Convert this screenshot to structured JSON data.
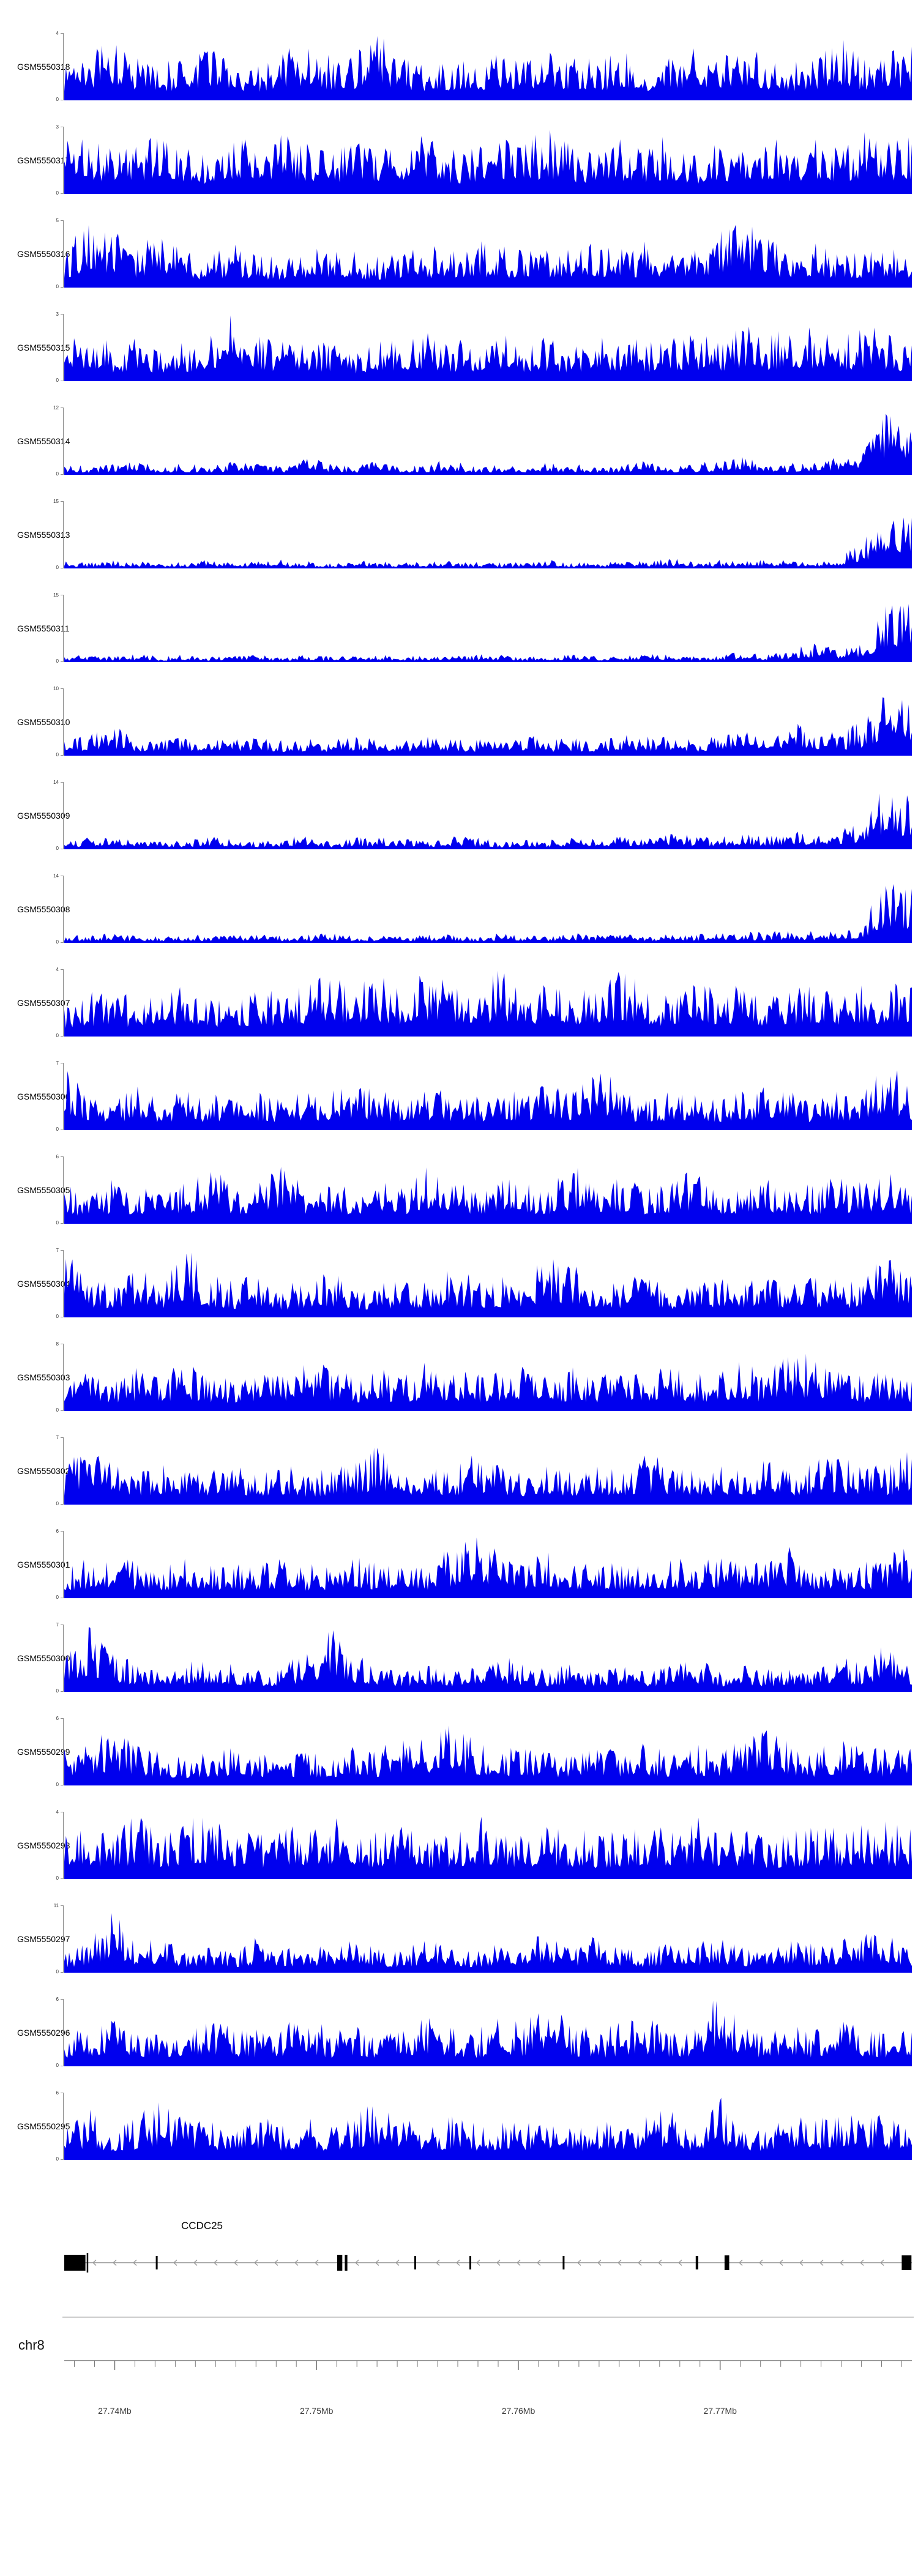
{
  "figure": {
    "signal_color": "#0000EE",
    "gene_color": "#000000",
    "axis_line_color": "#7a7a7a",
    "arrow_color": "#9a9a9a",
    "separator_color": "#cccccc"
  },
  "chart_data": {
    "type": "area",
    "subtype": "genome-browser-coverage-tracks",
    "title": "",
    "x_range_mb": [
      27.7375,
      27.7795
    ],
    "ylabel": "",
    "tracks": [
      {
        "id": "GSM5550318",
        "ymin": 0,
        "ymax": 4,
        "profile": [
          0.55,
          0.7,
          0.95,
          0.6,
          0.5,
          0.65,
          0.8,
          0.55,
          0.5,
          0.7,
          0.85,
          0.6,
          0.7,
          0.9,
          0.65,
          0.5,
          0.6,
          0.55,
          0.7,
          0.6,
          0.75,
          0.65,
          0.55,
          0.7,
          0.5,
          0.6,
          0.85,
          0.7,
          0.75,
          0.6,
          0.55,
          0.65,
          0.9,
          0.6,
          0.65,
          0.8
        ]
      },
      {
        "id": "GSM5550317",
        "ymin": 0,
        "ymax": 3,
        "profile": [
          0.7,
          0.9,
          0.6,
          0.75,
          0.95,
          0.7,
          0.6,
          0.85,
          0.7,
          0.95,
          0.75,
          0.6,
          0.85,
          0.7,
          0.75,
          0.95,
          0.6,
          0.7,
          0.85,
          0.75,
          0.9,
          0.7,
          0.6,
          0.75,
          0.7,
          0.85,
          0.6,
          0.75,
          0.7,
          0.9,
          0.75,
          0.85,
          0.7,
          0.9,
          0.8,
          0.85
        ]
      },
      {
        "id": "GSM5550316",
        "ymin": 0,
        "ymax": 5,
        "profile": [
          0.5,
          1.0,
          0.85,
          0.6,
          0.75,
          0.55,
          0.45,
          0.6,
          0.5,
          0.45,
          0.55,
          0.6,
          0.5,
          0.45,
          0.6,
          0.55,
          0.6,
          0.65,
          0.55,
          0.6,
          0.5,
          0.65,
          0.6,
          0.55,
          0.65,
          0.55,
          0.6,
          0.75,
          1.0,
          0.7,
          0.55,
          0.6,
          0.5,
          0.6,
          0.55,
          0.6
        ]
      },
      {
        "id": "GSM5550315",
        "ymin": 0,
        "ymax": 3,
        "profile": [
          0.55,
          0.75,
          0.5,
          0.6,
          0.45,
          0.55,
          0.65,
          1.0,
          0.7,
          0.55,
          0.6,
          0.5,
          0.45,
          0.6,
          0.55,
          0.7,
          0.55,
          0.6,
          0.7,
          0.55,
          0.6,
          0.5,
          0.7,
          0.6,
          0.55,
          0.6,
          0.7,
          0.55,
          0.8,
          0.6,
          0.85,
          0.7,
          0.6,
          0.8,
          0.65,
          0.55
        ]
      },
      {
        "id": "GSM5550314",
        "ymin": 0,
        "ymax": 12,
        "profile": [
          0.18,
          0.12,
          0.16,
          0.22,
          0.12,
          0.16,
          0.12,
          0.22,
          0.16,
          0.12,
          0.26,
          0.16,
          0.12,
          0.2,
          0.12,
          0.16,
          0.22,
          0.12,
          0.16,
          0.12,
          0.2,
          0.16,
          0.12,
          0.16,
          0.2,
          0.12,
          0.16,
          0.2,
          0.26,
          0.2,
          0.16,
          0.2,
          0.26,
          0.35,
          1.0,
          0.75
        ]
      },
      {
        "id": "GSM5550313",
        "ymin": 0,
        "ymax": 15,
        "profile": [
          0.1,
          0.08,
          0.12,
          0.1,
          0.08,
          0.1,
          0.12,
          0.08,
          0.1,
          0.12,
          0.1,
          0.08,
          0.12,
          0.1,
          0.08,
          0.1,
          0.12,
          0.1,
          0.08,
          0.1,
          0.12,
          0.08,
          0.1,
          0.12,
          0.1,
          0.14,
          0.1,
          0.12,
          0.1,
          0.14,
          0.12,
          0.1,
          0.18,
          0.4,
          1.0,
          0.85
        ]
      },
      {
        "id": "GSM5550311",
        "ymin": 0,
        "ymax": 15,
        "profile": [
          0.08,
          0.1,
          0.08,
          0.11,
          0.08,
          0.1,
          0.08,
          0.1,
          0.11,
          0.08,
          0.1,
          0.08,
          0.11,
          0.1,
          0.08,
          0.1,
          0.08,
          0.11,
          0.1,
          0.08,
          0.1,
          0.11,
          0.08,
          0.1,
          0.11,
          0.1,
          0.08,
          0.11,
          0.14,
          0.1,
          0.18,
          0.26,
          0.18,
          0.3,
          0.85,
          1.0
        ]
      },
      {
        "id": "GSM5550310",
        "ymin": 0,
        "ymax": 10,
        "profile": [
          0.22,
          0.32,
          0.42,
          0.26,
          0.22,
          0.3,
          0.22,
          0.26,
          0.3,
          0.22,
          0.26,
          0.22,
          0.3,
          0.26,
          0.22,
          0.3,
          0.26,
          0.22,
          0.26,
          0.3,
          0.22,
          0.26,
          0.22,
          0.3,
          0.26,
          0.3,
          0.22,
          0.3,
          0.4,
          0.3,
          0.5,
          0.4,
          0.3,
          0.5,
          1.0,
          0.85
        ]
      },
      {
        "id": "GSM5550309",
        "ymin": 0,
        "ymax": 14,
        "profile": [
          0.12,
          0.16,
          0.2,
          0.12,
          0.16,
          0.12,
          0.2,
          0.16,
          0.12,
          0.16,
          0.2,
          0.12,
          0.16,
          0.2,
          0.16,
          0.12,
          0.2,
          0.16,
          0.12,
          0.16,
          0.12,
          0.2,
          0.16,
          0.2,
          0.16,
          0.24,
          0.2,
          0.16,
          0.24,
          0.2,
          0.28,
          0.24,
          0.3,
          0.4,
          1.0,
          0.7
        ]
      },
      {
        "id": "GSM5550308",
        "ymin": 0,
        "ymax": 14,
        "profile": [
          0.12,
          0.1,
          0.14,
          0.12,
          0.1,
          0.14,
          0.1,
          0.12,
          0.14,
          0.1,
          0.12,
          0.14,
          0.1,
          0.12,
          0.1,
          0.14,
          0.12,
          0.1,
          0.14,
          0.12,
          0.1,
          0.14,
          0.12,
          0.14,
          0.1,
          0.14,
          0.12,
          0.14,
          0.18,
          0.14,
          0.2,
          0.16,
          0.2,
          0.3,
          1.0,
          0.8
        ]
      },
      {
        "id": "GSM5550307",
        "ymin": 0,
        "ymax": 4,
        "profile": [
          0.5,
          0.6,
          0.7,
          0.5,
          0.6,
          0.8,
          0.6,
          0.5,
          0.7,
          0.6,
          0.8,
          0.95,
          0.7,
          0.9,
          0.6,
          0.95,
          0.8,
          0.6,
          0.95,
          0.7,
          0.85,
          0.6,
          0.8,
          0.95,
          0.7,
          0.6,
          0.85,
          0.7,
          0.8,
          0.6,
          0.7,
          0.85,
          0.6,
          0.8,
          0.7,
          0.85
        ]
      },
      {
        "id": "GSM5550306",
        "ymin": 0,
        "ymax": 7,
        "profile": [
          0.95,
          0.55,
          0.45,
          0.6,
          0.45,
          0.55,
          0.45,
          0.6,
          0.55,
          0.45,
          0.6,
          0.55,
          0.7,
          0.55,
          0.45,
          0.6,
          0.55,
          0.45,
          0.6,
          0.55,
          0.7,
          0.55,
          0.95,
          0.6,
          0.45,
          0.55,
          0.6,
          0.45,
          0.55,
          0.6,
          0.55,
          0.45,
          0.6,
          0.55,
          1.0,
          0.6
        ]
      },
      {
        "id": "GSM5550305",
        "ymin": 0,
        "ymax": 6,
        "profile": [
          0.55,
          0.45,
          0.6,
          0.55,
          0.7,
          0.6,
          0.8,
          0.55,
          0.6,
          1.0,
          0.55,
          0.6,
          0.55,
          0.7,
          0.55,
          0.8,
          0.6,
          0.55,
          0.7,
          0.6,
          0.55,
          0.8,
          0.6,
          0.7,
          0.55,
          0.6,
          0.8,
          0.6,
          0.55,
          0.7,
          0.6,
          0.55,
          0.7,
          0.6,
          0.8,
          0.6
        ]
      },
      {
        "id": "GSM5550304",
        "ymin": 0,
        "ymax": 7,
        "profile": [
          0.9,
          0.6,
          0.5,
          0.7,
          0.5,
          1.0,
          0.6,
          0.5,
          0.6,
          0.45,
          0.55,
          0.6,
          0.5,
          0.45,
          0.6,
          0.55,
          0.7,
          0.55,
          0.6,
          0.5,
          0.9,
          0.8,
          0.6,
          0.5,
          0.6,
          0.5,
          0.45,
          0.6,
          0.5,
          0.6,
          0.5,
          0.6,
          0.5,
          0.6,
          0.9,
          0.55
        ]
      },
      {
        "id": "GSM5550303",
        "ymin": 0,
        "ymax": 8,
        "profile": [
          0.45,
          0.55,
          0.45,
          0.6,
          0.5,
          0.7,
          0.5,
          0.45,
          0.6,
          0.5,
          0.9,
          0.6,
          0.5,
          0.6,
          0.5,
          0.7,
          0.6,
          0.5,
          0.6,
          0.7,
          0.5,
          0.6,
          0.5,
          0.6,
          0.5,
          0.7,
          0.5,
          0.6,
          0.7,
          0.5,
          0.9,
          0.7,
          0.6,
          0.5,
          0.6,
          0.5
        ]
      },
      {
        "id": "GSM5550302",
        "ymin": 0,
        "ymax": 7,
        "profile": [
          0.5,
          0.9,
          0.7,
          0.5,
          0.6,
          0.5,
          0.45,
          0.6,
          0.5,
          0.6,
          0.45,
          0.5,
          0.6,
          0.9,
          0.5,
          0.6,
          0.5,
          0.7,
          0.6,
          0.5,
          0.6,
          0.5,
          0.6,
          0.5,
          0.7,
          0.6,
          0.5,
          0.6,
          0.5,
          0.7,
          0.5,
          0.6,
          0.7,
          0.6,
          0.5,
          0.9
        ]
      },
      {
        "id": "GSM5550301",
        "ymin": 0,
        "ymax": 6,
        "profile": [
          0.45,
          0.55,
          0.6,
          0.5,
          0.45,
          0.6,
          0.5,
          0.45,
          0.5,
          0.6,
          0.45,
          0.5,
          0.6,
          0.5,
          0.6,
          0.5,
          0.7,
          1.0,
          0.6,
          0.5,
          0.7,
          0.5,
          0.6,
          0.5,
          0.45,
          0.6,
          0.5,
          0.6,
          0.5,
          0.6,
          0.7,
          0.5,
          0.45,
          0.5,
          0.6,
          0.9
        ]
      },
      {
        "id": "GSM5550300",
        "ymin": 0,
        "ymax": 7,
        "profile": [
          0.5,
          1.0,
          0.6,
          0.4,
          0.3,
          0.4,
          0.5,
          0.4,
          0.3,
          0.4,
          0.5,
          1.0,
          0.5,
          0.4,
          0.3,
          0.4,
          0.3,
          0.4,
          0.5,
          0.4,
          0.3,
          0.4,
          0.3,
          0.4,
          0.3,
          0.4,
          0.5,
          0.3,
          0.4,
          0.3,
          0.4,
          0.3,
          0.5,
          0.4,
          0.8,
          0.4
        ]
      },
      {
        "id": "GSM5550299",
        "ymin": 0,
        "ymax": 6,
        "profile": [
          0.5,
          0.6,
          0.85,
          0.6,
          0.5,
          0.45,
          0.5,
          0.6,
          0.5,
          0.45,
          0.5,
          0.45,
          0.6,
          0.5,
          0.7,
          0.6,
          0.85,
          0.6,
          0.5,
          0.6,
          0.5,
          0.45,
          0.6,
          0.5,
          0.6,
          0.5,
          0.6,
          0.5,
          0.7,
          0.85,
          0.6,
          0.5,
          0.7,
          0.6,
          0.5,
          0.6
        ]
      },
      {
        "id": "GSM5550298",
        "ymin": 0,
        "ymax": 4,
        "profile": [
          0.7,
          0.8,
          0.65,
          0.9,
          0.7,
          0.8,
          0.9,
          0.7,
          0.65,
          0.8,
          0.7,
          0.9,
          0.65,
          0.7,
          0.8,
          0.65,
          0.7,
          0.9,
          0.7,
          0.65,
          0.8,
          0.7,
          0.65,
          0.7,
          0.8,
          0.7,
          0.9,
          0.7,
          0.8,
          0.65,
          0.7,
          0.8,
          0.7,
          0.9,
          0.8,
          0.7
        ]
      },
      {
        "id": "GSM5550297",
        "ymin": 0,
        "ymax": 11,
        "profile": [
          0.3,
          0.4,
          0.95,
          0.4,
          0.5,
          0.3,
          0.4,
          0.3,
          0.5,
          0.4,
          0.3,
          0.4,
          0.5,
          0.4,
          0.3,
          0.5,
          0.4,
          0.3,
          0.4,
          0.5,
          0.6,
          0.4,
          0.5,
          0.4,
          0.3,
          0.5,
          0.4,
          0.5,
          0.4,
          0.3,
          0.5,
          0.4,
          0.5,
          0.6,
          0.5,
          0.4
        ]
      },
      {
        "id": "GSM5550296",
        "ymin": 0,
        "ymax": 6,
        "profile": [
          0.5,
          0.6,
          0.7,
          0.55,
          0.6,
          0.5,
          0.7,
          0.6,
          0.5,
          0.6,
          0.7,
          0.5,
          0.6,
          0.5,
          0.6,
          0.7,
          0.6,
          0.5,
          0.7,
          0.6,
          0.9,
          0.6,
          0.5,
          0.6,
          0.7,
          0.5,
          0.6,
          1.0,
          0.6,
          0.5,
          0.6,
          0.5,
          0.7,
          0.6,
          0.5,
          0.6
        ]
      },
      {
        "id": "GSM5550295",
        "ymin": 0,
        "ymax": 6,
        "profile": [
          0.5,
          0.7,
          0.5,
          0.6,
          0.9,
          0.6,
          0.5,
          0.7,
          0.6,
          0.5,
          0.6,
          0.5,
          0.7,
          0.9,
          0.6,
          0.5,
          0.6,
          0.5,
          0.6,
          0.5,
          0.7,
          0.5,
          0.6,
          0.5,
          0.6,
          0.7,
          0.5,
          0.9,
          0.6,
          0.5,
          0.7,
          0.6,
          0.8,
          0.7,
          0.6,
          0.5
        ]
      }
    ],
    "gene_track": {
      "title": "CCDC25",
      "strand": "-",
      "exons": [
        {
          "x": 0.0,
          "w": 0.025,
          "h": 26
        },
        {
          "x": 0.0265,
          "w": 0.0018,
          "h": 32
        },
        {
          "x": 0.108,
          "w": 0.0022,
          "h": 22
        },
        {
          "x": 0.322,
          "w": 0.006,
          "h": 26
        },
        {
          "x": 0.331,
          "w": 0.003,
          "h": 26
        },
        {
          "x": 0.413,
          "w": 0.0022,
          "h": 22
        },
        {
          "x": 0.478,
          "w": 0.0022,
          "h": 22
        },
        {
          "x": 0.588,
          "w": 0.0022,
          "h": 22
        },
        {
          "x": 0.745,
          "w": 0.003,
          "h": 22
        },
        {
          "x": 0.779,
          "w": 0.0055,
          "h": 24
        },
        {
          "x": 0.988,
          "w": 0.0115,
          "h": 24
        }
      ]
    },
    "axis": {
      "chromosome": "chr8",
      "from_mb": 27.7375,
      "to_mb": 27.7795,
      "minor_tick_step_mb": 0.001,
      "major_ticks": [
        {
          "mb": 27.74,
          "label": "27.74Mb"
        },
        {
          "mb": 27.75,
          "label": "27.75Mb"
        },
        {
          "mb": 27.76,
          "label": "27.76Mb"
        },
        {
          "mb": 27.77,
          "label": "27.77Mb"
        }
      ]
    }
  }
}
